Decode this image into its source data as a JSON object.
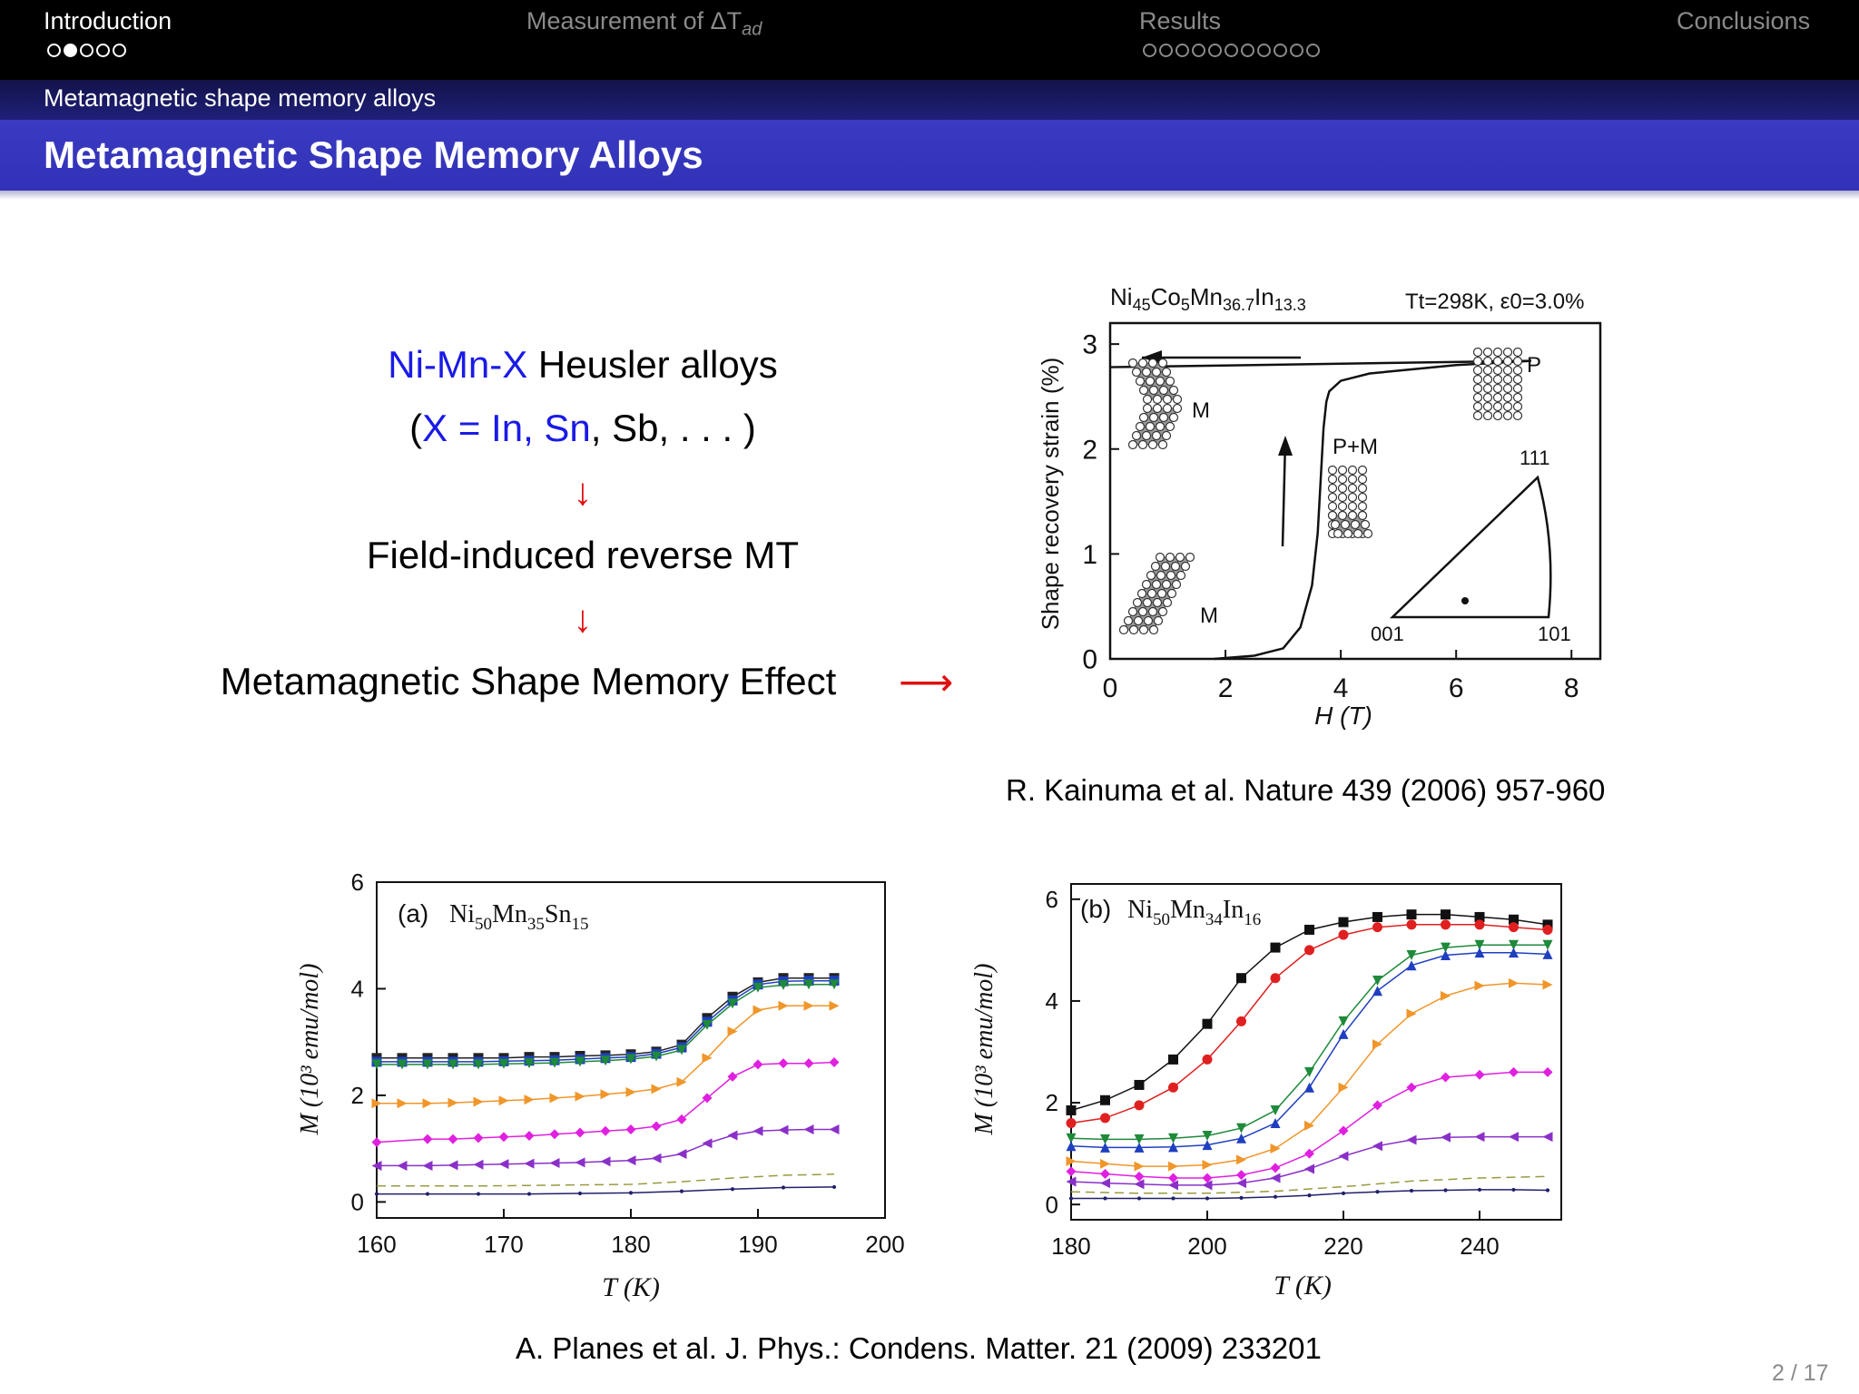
{
  "nav": {
    "sections": [
      {
        "label": "Introduction",
        "dots": 5,
        "current": 2
      },
      {
        "label": "Measurement of ΔT",
        "sub": "ad",
        "dots": 0
      },
      {
        "label": "Results",
        "dots": 11
      },
      {
        "label": "Conclusions",
        "dots": 0
      }
    ]
  },
  "subsection": "Metamagnetic shape memory alloys",
  "frame_title": "Metamagnetic Shape Memory Alloys",
  "flow": {
    "line1_a": "Ni-Mn-X",
    "line1_b": " Heusler alloys",
    "line2_open": "(",
    "line2_x": "X = In, Sn",
    "line2_rest": ", Sb, . . . )",
    "down_arrow": "↓",
    "line3": "Field-induced reverse MT",
    "line4": "Metamagnetic Shape Memory Effect",
    "right_arrow": "⟶"
  },
  "fig_top": {
    "composition": "Ni45Co5Mn36.7In13.3",
    "condition": "Tt=298K, ε0=3.0%",
    "ylabel": "Shape recovery strain (%)",
    "xlabel": "H (T)",
    "xticks": [
      "0",
      "2",
      "4",
      "6",
      "8"
    ],
    "yticks": [
      "0",
      "1",
      "2",
      "3"
    ],
    "labels": {
      "m_top": "M",
      "m_bottom": "M",
      "pm": "P+M",
      "p": "P"
    },
    "triangle": {
      "top": "111",
      "left": "001",
      "right": "101"
    }
  },
  "ref_top": "R. Kainuma et al. Nature 439 (2006) 957-960",
  "fig_a": {
    "panel": "(a)",
    "composition": "Ni50Mn35Sn15",
    "ylabel": "M (10³ emu/mol)",
    "xlabel": "T (K)",
    "xticks": [
      "160",
      "170",
      "180",
      "190",
      "200"
    ],
    "yticks": [
      "0",
      "2",
      "4",
      "6"
    ]
  },
  "fig_b": {
    "panel": "(b)",
    "composition": "Ni50Mn34In16",
    "ylabel": "M (10³ emu/mol)",
    "xlabel": "T (K)",
    "xticks": [
      "180",
      "200",
      "220",
      "240"
    ],
    "yticks": [
      "0",
      "2",
      "4",
      "6"
    ]
  },
  "ref_bottom": "A. Planes et al. J. Phys.: Condens. Matter. 21 (2009) 233201",
  "page_number": "2 / 17",
  "chart_data": [
    {
      "type": "line",
      "xlabel": "H (T)",
      "ylabel": "Shape recovery strain (%)",
      "xlim": [
        0,
        8.5
      ],
      "ylim": [
        0,
        3.2
      ],
      "series": [
        {
          "x": [
            1.8,
            2.5,
            3.0,
            3.3,
            3.5,
            3.6,
            3.65,
            3.7,
            3.75,
            3.8,
            4.0,
            4.5,
            6.0,
            7.3
          ],
          "y": [
            0.0,
            0.03,
            0.1,
            0.3,
            0.7,
            1.2,
            1.7,
            2.2,
            2.45,
            2.55,
            2.65,
            2.72,
            2.8,
            2.84
          ]
        },
        {
          "x": [
            7.3,
            0.0
          ],
          "y": [
            2.84,
            2.78
          ]
        }
      ]
    },
    {
      "type": "scatter",
      "xlabel": "T (K)",
      "ylabel": "M (10³ emu/mol)",
      "xlim": [
        160,
        200
      ],
      "ylim": [
        -0.3,
        6.0
      ],
      "series": [
        {
          "color": "#222222",
          "x": [
            160,
            162,
            164,
            166,
            168,
            170,
            172,
            174,
            176,
            178,
            180,
            182,
            184,
            186,
            188,
            190,
            192,
            194,
            196
          ],
          "y": [
            2.7,
            2.7,
            2.7,
            2.7,
            2.7,
            2.7,
            2.72,
            2.72,
            2.74,
            2.75,
            2.77,
            2.82,
            2.95,
            3.45,
            3.85,
            4.12,
            4.2,
            4.2,
            4.2
          ]
        },
        {
          "color": "#1f3fbf",
          "x": [
            160,
            162,
            164,
            166,
            168,
            170,
            172,
            174,
            176,
            178,
            180,
            182,
            184,
            186,
            188,
            190,
            192,
            194,
            196
          ],
          "y": [
            2.63,
            2.63,
            2.63,
            2.63,
            2.63,
            2.64,
            2.65,
            2.66,
            2.68,
            2.7,
            2.72,
            2.78,
            2.9,
            3.38,
            3.78,
            4.08,
            4.14,
            4.15,
            4.15
          ]
        },
        {
          "color": "#1e8a3a",
          "x": [
            160,
            162,
            164,
            166,
            168,
            170,
            172,
            174,
            176,
            178,
            180,
            182,
            184,
            186,
            188,
            190,
            192,
            194,
            196
          ],
          "y": [
            2.58,
            2.58,
            2.58,
            2.58,
            2.58,
            2.59,
            2.6,
            2.61,
            2.63,
            2.65,
            2.68,
            2.73,
            2.85,
            3.32,
            3.72,
            4.02,
            4.07,
            4.08,
            4.08
          ]
        },
        {
          "color": "#f0962a",
          "x": [
            160,
            162,
            164,
            166,
            168,
            170,
            172,
            174,
            176,
            178,
            180,
            182,
            184,
            186,
            188,
            190,
            192,
            194,
            196
          ],
          "y": [
            1.85,
            1.85,
            1.85,
            1.86,
            1.88,
            1.9,
            1.92,
            1.95,
            1.98,
            2.02,
            2.06,
            2.12,
            2.25,
            2.7,
            3.2,
            3.6,
            3.68,
            3.68,
            3.68
          ]
        },
        {
          "color": "#e020e0",
          "x": [
            160,
            164,
            166,
            168,
            170,
            172,
            174,
            176,
            178,
            180,
            182,
            184,
            186,
            188,
            190,
            192,
            194,
            196
          ],
          "y": [
            1.12,
            1.18,
            1.18,
            1.2,
            1.22,
            1.24,
            1.27,
            1.3,
            1.33,
            1.36,
            1.42,
            1.55,
            1.95,
            2.35,
            2.58,
            2.6,
            2.6,
            2.62
          ]
        },
        {
          "color": "#8a30c8",
          "x": [
            160,
            162,
            164,
            166,
            168,
            170,
            172,
            174,
            176,
            178,
            180,
            182,
            184,
            186,
            188,
            190,
            192,
            194,
            196
          ],
          "y": [
            0.68,
            0.68,
            0.68,
            0.69,
            0.7,
            0.71,
            0.72,
            0.73,
            0.74,
            0.76,
            0.78,
            0.82,
            0.9,
            1.1,
            1.25,
            1.33,
            1.35,
            1.36,
            1.36
          ]
        },
        {
          "color": "#9a9a40",
          "x": [
            160,
            164,
            168,
            172,
            176,
            180,
            184,
            188,
            192,
            196
          ],
          "y": [
            0.3,
            0.3,
            0.3,
            0.31,
            0.32,
            0.33,
            0.38,
            0.45,
            0.5,
            0.52
          ]
        },
        {
          "color": "#20206a",
          "x": [
            160,
            164,
            168,
            172,
            176,
            180,
            184,
            188,
            192,
            196
          ],
          "y": [
            0.15,
            0.15,
            0.15,
            0.15,
            0.16,
            0.17,
            0.2,
            0.24,
            0.27,
            0.28
          ]
        }
      ]
    },
    {
      "type": "scatter",
      "xlabel": "T (K)",
      "ylabel": "M (10³ emu/mol)",
      "xlim": [
        180,
        252
      ],
      "ylim": [
        -0.3,
        6.3
      ],
      "series": [
        {
          "color": "#111111",
          "x": [
            180,
            185,
            190,
            195,
            200,
            205,
            210,
            215,
            220,
            225,
            230,
            235,
            240,
            245,
            250
          ],
          "y": [
            1.85,
            2.05,
            2.35,
            2.85,
            3.55,
            4.45,
            5.05,
            5.4,
            5.55,
            5.65,
            5.7,
            5.7,
            5.65,
            5.6,
            5.5
          ]
        },
        {
          "color": "#e02020",
          "x": [
            180,
            185,
            190,
            195,
            200,
            205,
            210,
            215,
            220,
            225,
            230,
            235,
            240,
            245,
            250
          ],
          "y": [
            1.6,
            1.7,
            1.95,
            2.3,
            2.85,
            3.6,
            4.45,
            5.0,
            5.3,
            5.45,
            5.5,
            5.5,
            5.5,
            5.45,
            5.4
          ]
        },
        {
          "color": "#1e8a3a",
          "x": [
            180,
            185,
            190,
            195,
            200,
            205,
            210,
            215,
            220,
            225,
            230,
            235,
            240,
            245,
            250
          ],
          "y": [
            1.3,
            1.28,
            1.28,
            1.3,
            1.35,
            1.5,
            1.85,
            2.6,
            3.6,
            4.4,
            4.9,
            5.05,
            5.1,
            5.1,
            5.1
          ]
        },
        {
          "color": "#1f3fbf",
          "x": [
            180,
            185,
            190,
            195,
            200,
            205,
            210,
            215,
            220,
            225,
            230,
            235,
            240,
            245,
            250
          ],
          "y": [
            1.15,
            1.12,
            1.12,
            1.13,
            1.17,
            1.3,
            1.6,
            2.3,
            3.35,
            4.2,
            4.7,
            4.9,
            4.95,
            4.95,
            4.92
          ]
        },
        {
          "color": "#f0962a",
          "x": [
            180,
            185,
            190,
            195,
            200,
            205,
            210,
            215,
            220,
            225,
            230,
            235,
            240,
            245,
            250
          ],
          "y": [
            0.85,
            0.8,
            0.75,
            0.75,
            0.78,
            0.88,
            1.1,
            1.55,
            2.3,
            3.15,
            3.75,
            4.1,
            4.3,
            4.35,
            4.32
          ]
        },
        {
          "color": "#e020e0",
          "x": [
            180,
            185,
            190,
            195,
            200,
            205,
            210,
            215,
            220,
            225,
            230,
            235,
            240,
            245,
            250
          ],
          "y": [
            0.65,
            0.6,
            0.55,
            0.52,
            0.52,
            0.58,
            0.72,
            1.0,
            1.45,
            1.95,
            2.3,
            2.5,
            2.55,
            2.6,
            2.6
          ]
        },
        {
          "color": "#8a30c8",
          "x": [
            180,
            185,
            190,
            195,
            200,
            205,
            210,
            215,
            220,
            225,
            230,
            235,
            240,
            245,
            250
          ],
          "y": [
            0.45,
            0.42,
            0.4,
            0.38,
            0.38,
            0.42,
            0.52,
            0.7,
            0.95,
            1.15,
            1.27,
            1.32,
            1.33,
            1.33,
            1.33
          ]
        },
        {
          "color": "#9a9a40",
          "x": [
            180,
            190,
            200,
            210,
            220,
            230,
            240,
            250
          ],
          "y": [
            0.25,
            0.22,
            0.22,
            0.26,
            0.35,
            0.46,
            0.52,
            0.55
          ]
        },
        {
          "color": "#20206a",
          "x": [
            180,
            185,
            190,
            195,
            200,
            205,
            210,
            215,
            220,
            225,
            230,
            235,
            240,
            245,
            250
          ],
          "y": [
            0.12,
            0.12,
            0.12,
            0.12,
            0.12,
            0.13,
            0.15,
            0.18,
            0.22,
            0.25,
            0.27,
            0.28,
            0.29,
            0.29,
            0.28
          ]
        }
      ]
    }
  ]
}
